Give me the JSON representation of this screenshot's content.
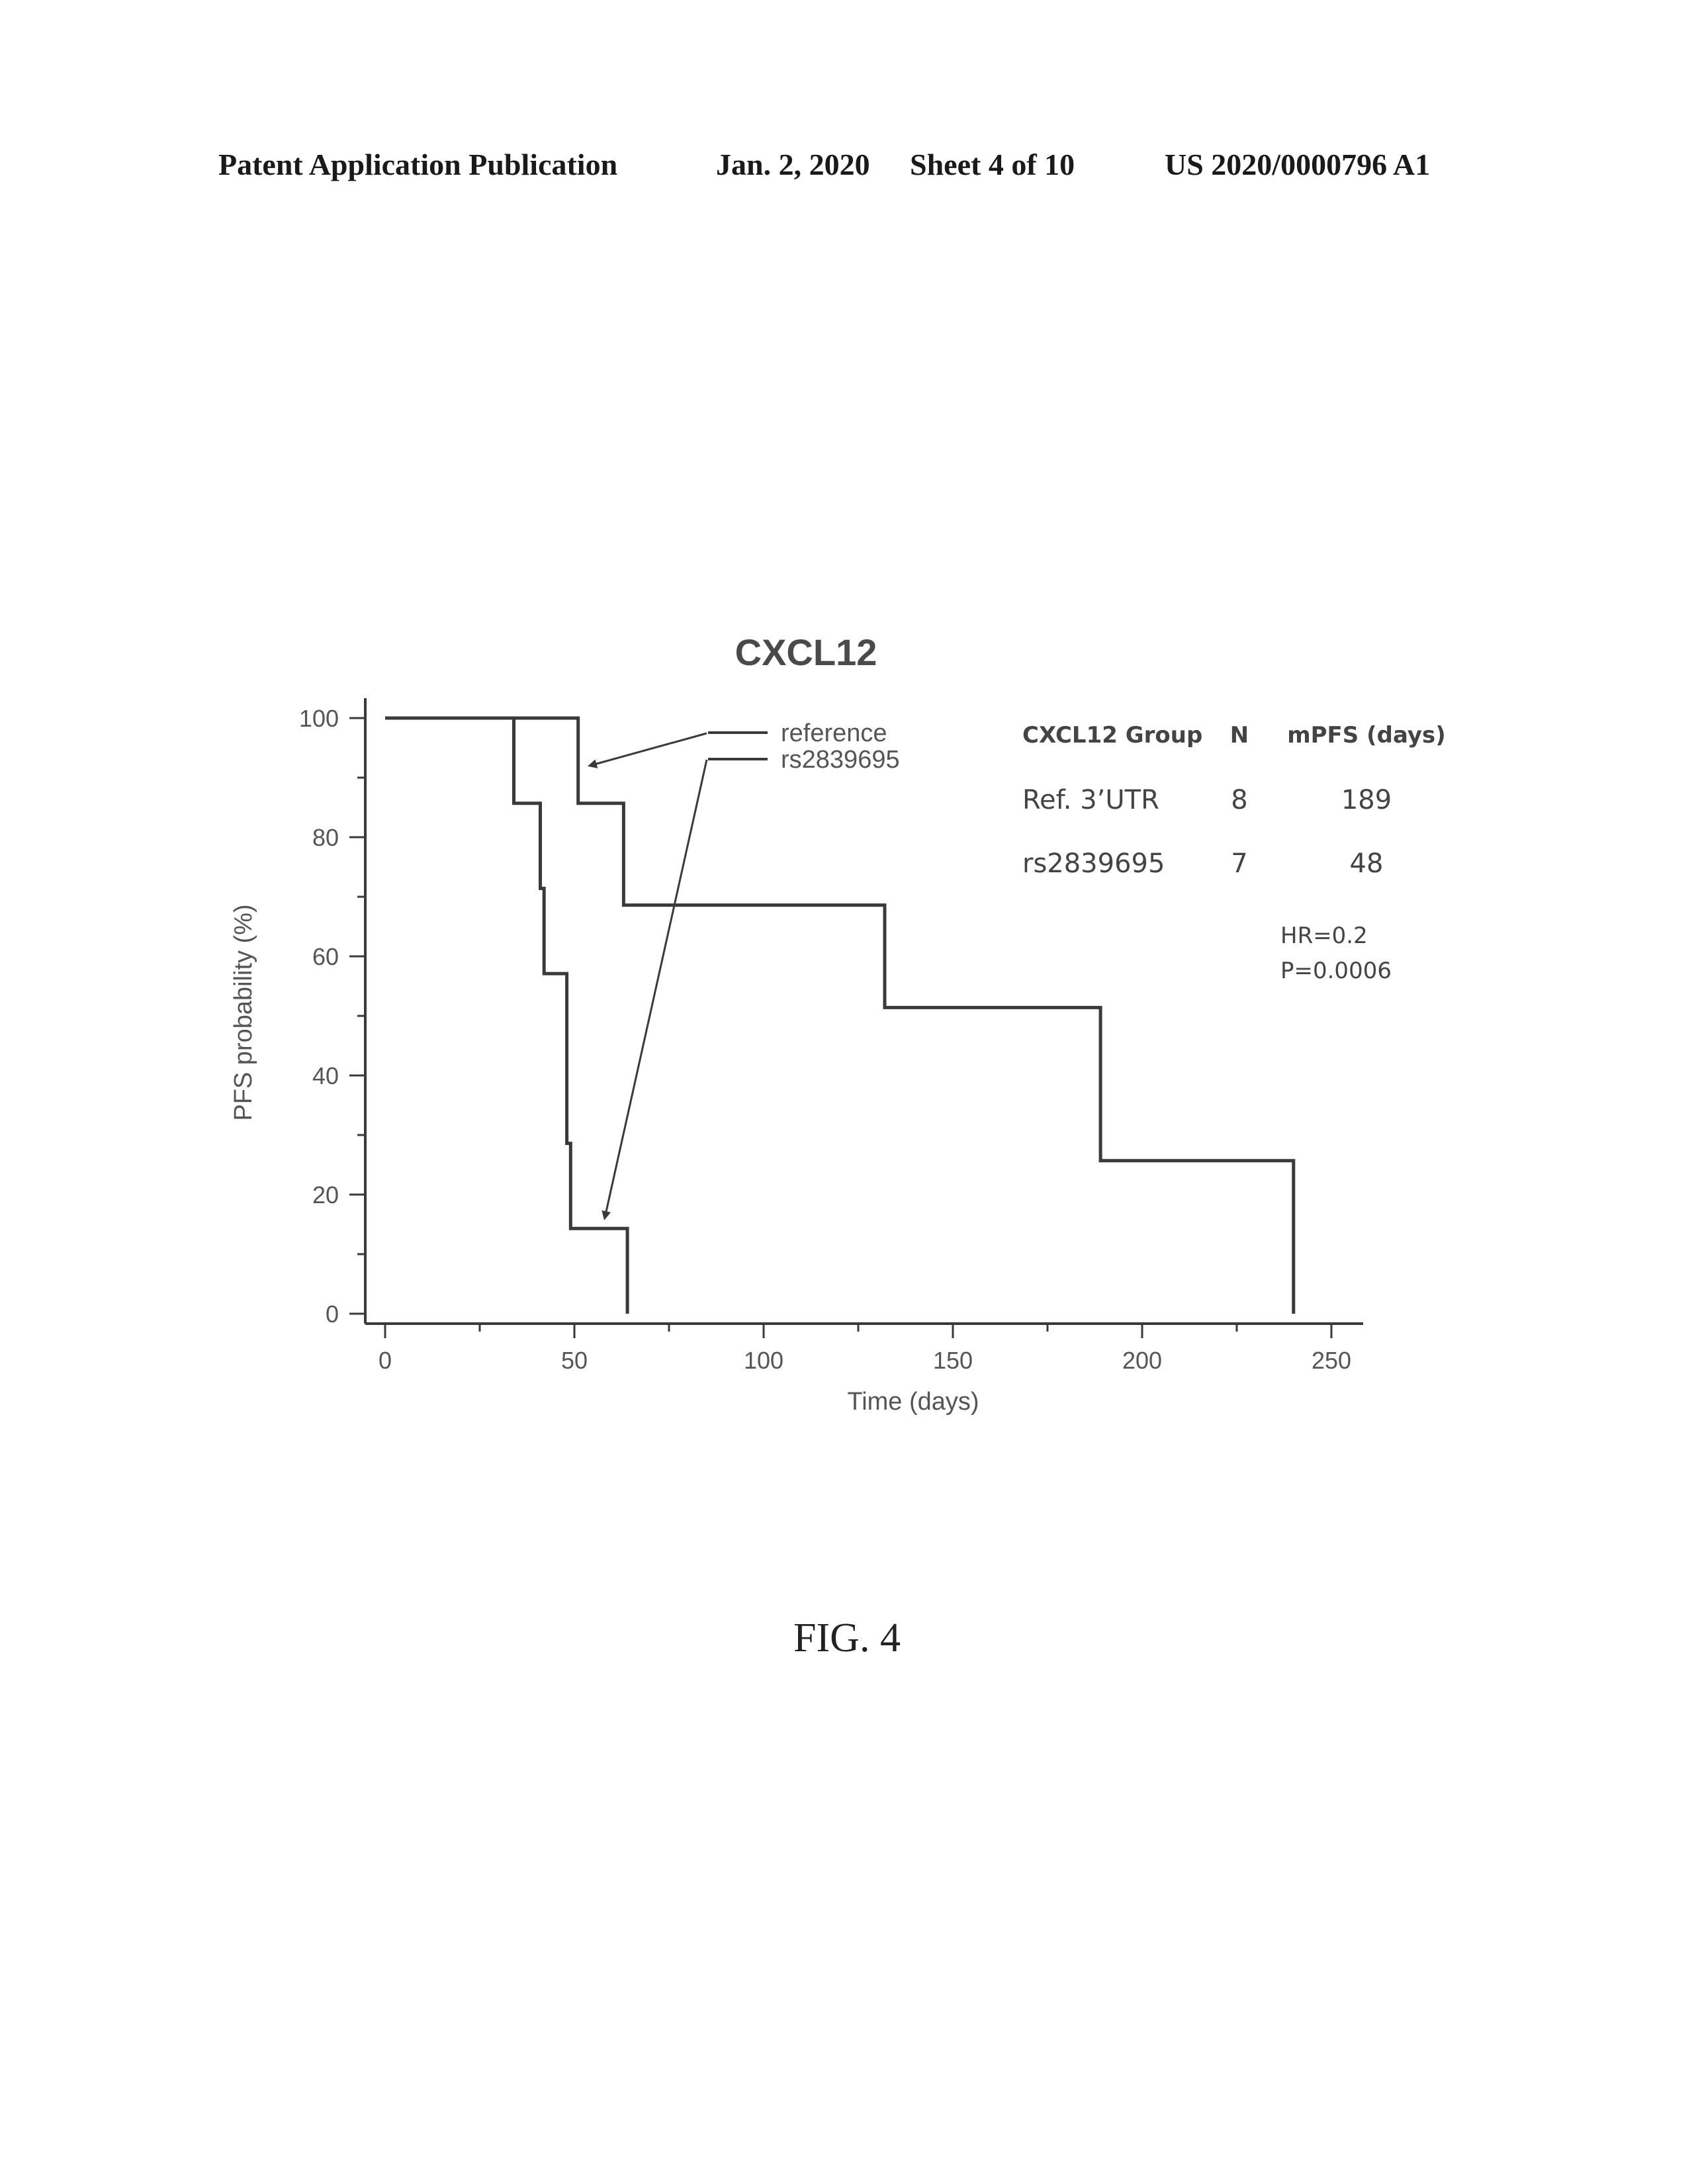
{
  "header": {
    "publication": "Patent Application Publication",
    "date": "Jan. 2, 2020",
    "sheet": "Sheet 4 of 10",
    "number": "US 2020/0000796 A1"
  },
  "figure_label": "FIG. 4",
  "colors": {
    "ink": "#3a3a3a",
    "text": "#555555"
  },
  "chart_data": {
    "type": "line",
    "subtype": "kaplan-meier step",
    "title": "CXCL12",
    "xlabel": "Time (days)",
    "ylabel": "PFS probability (%)",
    "xlim": [
      0,
      255
    ],
    "ylim": [
      0,
      100
    ],
    "xticks": [
      0,
      50,
      100,
      150,
      200,
      250
    ],
    "yticks": [
      0,
      20,
      40,
      60,
      80,
      100
    ],
    "grid": false,
    "legend_position": "top-center",
    "series": [
      {
        "name": "reference",
        "x": [
          0,
          51,
          51,
          63,
          63,
          132,
          132,
          189,
          189,
          240,
          240
        ],
        "y": [
          100,
          100,
          85.7,
          85.7,
          68.6,
          68.6,
          51.4,
          51.4,
          25.7,
          25.7,
          0
        ]
      },
      {
        "name": "rs2839695",
        "x": [
          0,
          34,
          34,
          41,
          41,
          42,
          42,
          48,
          48,
          49,
          49,
          64,
          64
        ],
        "y": [
          100,
          100,
          85.7,
          85.7,
          71.4,
          71.4,
          57.1,
          57.1,
          28.6,
          28.6,
          14.3,
          14.3,
          0
        ]
      }
    ],
    "annotations": [
      {
        "target_series": "reference",
        "x": 54,
        "y": 92
      },
      {
        "target_series": "rs2839695",
        "x": 58,
        "y": 16
      }
    ],
    "stats_table": {
      "headers": [
        "CXCL12 Group",
        "N",
        "mPFS (days)"
      ],
      "rows": [
        [
          "Ref. 3’UTR",
          "8",
          "189"
        ],
        [
          "rs2839695",
          "7",
          "48"
        ]
      ]
    },
    "hr_text": "HR=0.2",
    "p_text": "P=0.0006"
  }
}
